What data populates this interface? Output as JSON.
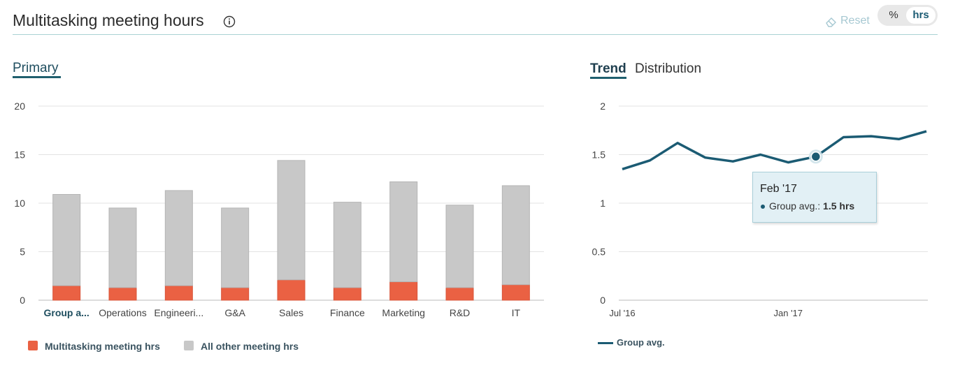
{
  "header": {
    "title": "Multitasking meeting hours",
    "reset_label": "Reset",
    "toggle": {
      "pct_label": "%",
      "hrs_label": "hrs",
      "selected": "hrs"
    }
  },
  "tabs_left": {
    "primary": "Primary"
  },
  "tabs_right": {
    "trend": "Trend",
    "distribution": "Distribution",
    "selected": "Trend"
  },
  "colors": {
    "multitasking": "#ea6143",
    "other": "#c8c8c8",
    "line": "#1b5b73",
    "accent": "#1f5f6e"
  },
  "chart_data": [
    {
      "type": "bar",
      "stacked": true,
      "categories": [
        "Group a...",
        "Operations",
        "Engineeri...",
        "G&A",
        "Sales",
        "Finance",
        "Marketing",
        "R&D",
        "IT"
      ],
      "series": [
        {
          "name": "Multitasking meeting hrs",
          "values": [
            1.5,
            1.3,
            1.5,
            1.3,
            2.1,
            1.3,
            1.9,
            1.3,
            1.6
          ]
        },
        {
          "name": "All other meeting hrs",
          "values": [
            9.4,
            8.2,
            9.8,
            8.2,
            12.3,
            8.8,
            10.3,
            8.5,
            10.2
          ]
        }
      ],
      "y_ticks": [
        "20",
        "15",
        "10",
        "5",
        "0"
      ],
      "ylim": [
        0,
        20
      ],
      "grid": true,
      "legend_position": "bottom-left"
    },
    {
      "type": "line",
      "x_tick_labels": [
        "Jul '16",
        "Jan '17"
      ],
      "series": [
        {
          "name": "Group avg.",
          "values": [
            1.35,
            1.44,
            1.62,
            1.47,
            1.43,
            1.5,
            1.42,
            1.48,
            1.68,
            1.69,
            1.66,
            1.74
          ]
        }
      ],
      "y_ticks": [
        "2",
        "1.5",
        "1",
        "0.5",
        "0"
      ],
      "ylim": [
        0,
        2
      ],
      "grid": true,
      "legend_position": "bottom-left",
      "tooltip": {
        "title": "Feb '17",
        "series_label": "Group avg.:",
        "value_text": "1.5 hrs",
        "point_index": 7
      }
    }
  ]
}
